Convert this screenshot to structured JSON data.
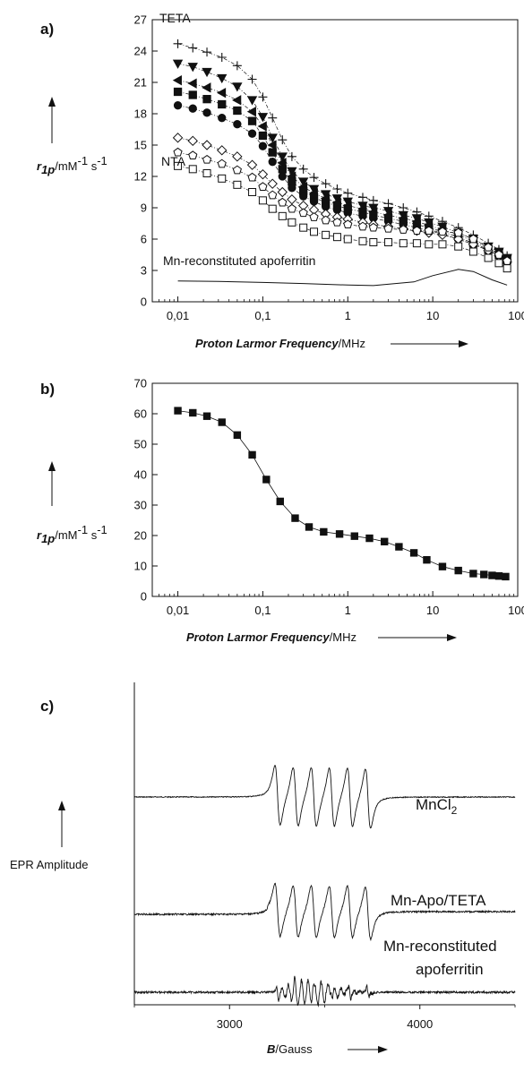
{
  "colors": {
    "ink": "#111111",
    "background": "#ffffff",
    "mark_fill": "#111111",
    "open_fill": "#ffffff"
  },
  "chart_data": [
    {
      "panel": "a)",
      "type": "scatter",
      "xscale": "log",
      "xlim": [
        0.005,
        100
      ],
      "ylim": [
        0,
        27
      ],
      "x_ticks": [
        "0,01",
        "0,1",
        "1",
        "10",
        "100"
      ],
      "y_ticks": [
        "0",
        "3",
        "6",
        "9",
        "12",
        "15",
        "18",
        "21",
        "24",
        "27"
      ],
      "xlabel": {
        "italic": "Proton Larmor Frequency",
        "unit": "/MHz"
      },
      "ylabel": {
        "symbol": "r",
        "sub": "1p",
        "unit": "/mM",
        "exp": "-1",
        "unit2": " s",
        "exp2": "-1"
      },
      "annotations": [
        "TETA",
        "NTA",
        "Mn-reconstituted apoferritin"
      ],
      "x": [
        0.01,
        0.015,
        0.022,
        0.033,
        0.05,
        0.075,
        0.1,
        0.13,
        0.17,
        0.22,
        0.3,
        0.4,
        0.55,
        0.75,
        1.0,
        1.5,
        2.0,
        3.0,
        4.5,
        6.5,
        9.0,
        13,
        20,
        30,
        45,
        60,
        75
      ],
      "series": [
        {
          "marker": "plus",
          "values": [
            24.7,
            24.3,
            23.9,
            23.4,
            22.6,
            21.3,
            19.6,
            17.6,
            15.5,
            13.9,
            12.7,
            11.9,
            11.3,
            10.8,
            10.4,
            10.0,
            9.7,
            9.4,
            9.0,
            8.6,
            8.2,
            7.7,
            7.1,
            6.4,
            5.6,
            5.0,
            4.4
          ]
        },
        {
          "marker": "triangle-down",
          "values": [
            22.8,
            22.5,
            22.0,
            21.4,
            20.6,
            19.3,
            17.7,
            15.7,
            13.9,
            12.5,
            11.5,
            10.8,
            10.3,
            9.9,
            9.6,
            9.2,
            9.0,
            8.7,
            8.3,
            8.0,
            7.6,
            7.2,
            6.6,
            6.0,
            5.3,
            4.8,
            4.2
          ]
        },
        {
          "marker": "triangle-left",
          "values": [
            21.2,
            20.9,
            20.5,
            20.0,
            19.3,
            18.2,
            16.8,
            15.0,
            13.3,
            12.0,
            11.0,
            10.4,
            9.9,
            9.5,
            9.2,
            8.9,
            8.6,
            8.3,
            8.0,
            7.7,
            7.3,
            6.9,
            6.4,
            5.8,
            5.1,
            4.6,
            4.1
          ]
        },
        {
          "marker": "square-filled",
          "values": [
            20.1,
            19.8,
            19.4,
            18.9,
            18.3,
            17.3,
            15.9,
            14.3,
            12.7,
            11.5,
            10.6,
            10.0,
            9.5,
            9.2,
            8.9,
            8.6,
            8.3,
            8.0,
            7.7,
            7.4,
            7.1,
            6.7,
            6.2,
            5.6,
            5.0,
            4.5,
            4.0
          ]
        },
        {
          "marker": "circle-filled",
          "values": [
            18.8,
            18.5,
            18.1,
            17.6,
            17.0,
            16.1,
            14.9,
            13.4,
            12.0,
            10.9,
            10.1,
            9.6,
            9.1,
            8.8,
            8.5,
            8.2,
            8.0,
            7.7,
            7.4,
            7.1,
            6.8,
            6.5,
            6.0,
            5.5,
            4.9,
            4.4,
            3.9
          ]
        },
        {
          "marker": "diamond-open",
          "values": [
            15.7,
            15.4,
            15.0,
            14.5,
            13.9,
            13.1,
            12.2,
            11.3,
            10.5,
            9.8,
            9.2,
            8.8,
            8.4,
            8.1,
            7.9,
            7.6,
            7.4,
            7.2,
            7.0,
            6.8,
            6.6,
            6.4,
            6.0,
            5.5,
            4.9,
            4.4,
            3.8
          ]
        },
        {
          "marker": "pentagon-open",
          "values": [
            14.3,
            14.0,
            13.6,
            13.2,
            12.6,
            11.9,
            11.0,
            10.2,
            9.5,
            8.9,
            8.5,
            8.1,
            7.8,
            7.6,
            7.4,
            7.2,
            7.1,
            7.0,
            6.9,
            6.8,
            6.8,
            6.7,
            6.6,
            6.0,
            5.2,
            4.5,
            3.9
          ]
        },
        {
          "marker": "square-open",
          "values": [
            13.0,
            12.7,
            12.3,
            11.8,
            11.2,
            10.5,
            9.7,
            8.9,
            8.2,
            7.6,
            7.1,
            6.7,
            6.4,
            6.2,
            6.0,
            5.8,
            5.7,
            5.7,
            5.6,
            5.6,
            5.5,
            5.5,
            5.3,
            4.8,
            4.2,
            3.7,
            3.2
          ]
        },
        {
          "marker": "line",
          "name": "Mn-reconstituted apoferritin",
          "x": [
            0.01,
            0.03,
            0.1,
            0.3,
            1.0,
            2.0,
            6.0,
            10,
            20,
            30,
            50,
            75
          ],
          "values": [
            2.0,
            1.95,
            1.85,
            1.75,
            1.6,
            1.55,
            1.9,
            2.5,
            3.1,
            2.9,
            2.1,
            1.6
          ]
        }
      ]
    },
    {
      "panel": "b)",
      "type": "line",
      "xscale": "log",
      "xlim": [
        0.005,
        100
      ],
      "ylim": [
        0,
        70
      ],
      "x_ticks": [
        "0,01",
        "0,1",
        "1",
        "10",
        "100"
      ],
      "y_ticks": [
        "0",
        "10",
        "20",
        "30",
        "40",
        "50",
        "60",
        "70"
      ],
      "xlabel": {
        "italic": "Proton Larmor Frequency",
        "unit": "/MHz"
      },
      "ylabel": {
        "symbol": "r",
        "sub": "1p",
        "unit": "/mM",
        "exp": "-1",
        "unit2": " s",
        "exp2": "-1"
      },
      "series": [
        {
          "marker": "square-filled",
          "x": [
            0.01,
            0.015,
            0.022,
            0.033,
            0.05,
            0.075,
            0.11,
            0.16,
            0.24,
            0.35,
            0.52,
            0.8,
            1.2,
            1.8,
            2.7,
            4.0,
            6.0,
            8.5,
            13,
            20,
            30,
            40,
            50,
            60,
            72
          ],
          "values": [
            61,
            60.3,
            59.2,
            57.2,
            53.0,
            46.5,
            38.4,
            31.2,
            25.7,
            22.8,
            21.2,
            20.5,
            19.8,
            19.1,
            18.0,
            16.3,
            14.3,
            12.0,
            9.8,
            8.5,
            7.5,
            7.2,
            6.9,
            6.7,
            6.5
          ]
        }
      ]
    },
    {
      "panel": "c)",
      "type": "line",
      "xlim": [
        2500,
        4500
      ],
      "x_ticks": [
        "3000",
        "4000"
      ],
      "xlabel": {
        "italic": "B",
        "unit": "/Gauss"
      },
      "ylabel_text": "EPR Amplitude",
      "hyperfine_center": 3490,
      "hyperfine_spacing": 95,
      "series": [
        {
          "name": "MnCl2",
          "label_main": "MnCl",
          "label_sub": "2"
        },
        {
          "name": "Mn-Apo/TETA",
          "label_main": "Mn-Apo/TETA"
        },
        {
          "name": "Mn-reconstituted apoferritin",
          "label_line1": "Mn-reconstituted",
          "label_line2": "apoferritin"
        }
      ]
    }
  ]
}
